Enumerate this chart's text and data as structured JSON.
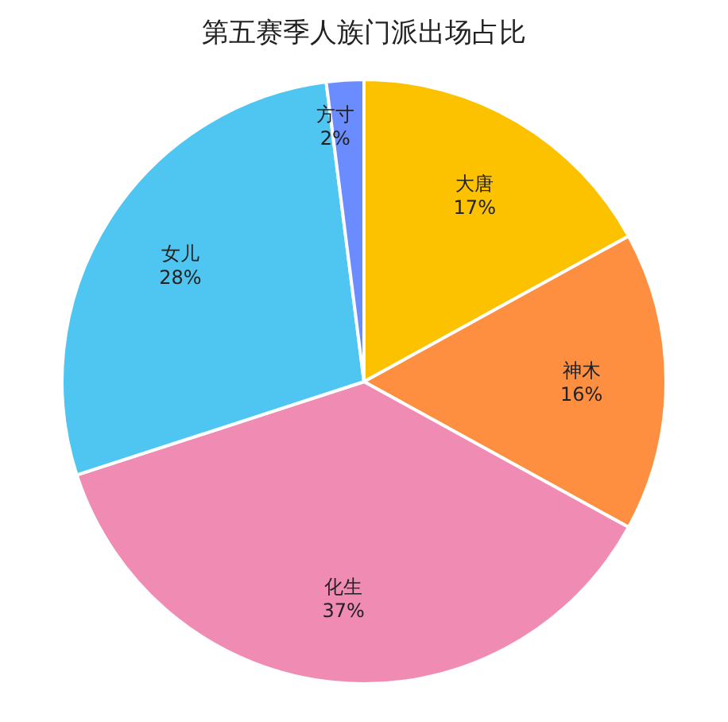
{
  "chart_data": {
    "type": "pie",
    "title": "第五赛季人族门派出场占比",
    "categories": [
      "大唐",
      "神木",
      "化生",
      "女儿",
      "方寸"
    ],
    "values": [
      17,
      16,
      37,
      28,
      2
    ],
    "colors": [
      "#fcc200",
      "#ff8f40",
      "#f08cb4",
      "#4fc6f2",
      "#6b8cff"
    ],
    "value_labels": [
      "17%",
      "16%",
      "37%",
      "28%",
      "2%"
    ]
  }
}
